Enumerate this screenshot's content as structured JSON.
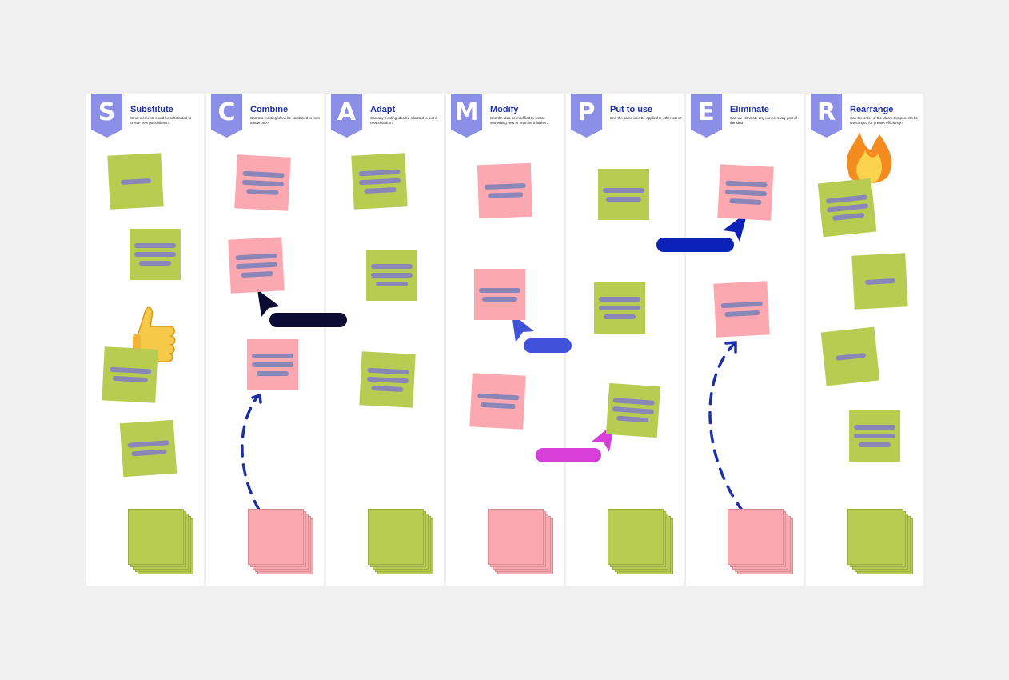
{
  "board": {
    "columns": [
      {
        "letter": "S",
        "title": "Substitute",
        "question": "What elements could be substituted to create new possibilities?"
      },
      {
        "letter": "C",
        "title": "Combine",
        "question": "Can two existing ideas be combined to form a new one?"
      },
      {
        "letter": "A",
        "title": "Adapt",
        "question": "Can any existing idea be adapted to suit a new situation?"
      },
      {
        "letter": "M",
        "title": "Modify",
        "question": "Can the idea be modified to create something new or improve it further?"
      },
      {
        "letter": "P",
        "title": "Put to use",
        "question": "Can the same idea be applied to other uses?"
      },
      {
        "letter": "E",
        "title": "Eliminate",
        "question": "Can we eliminate any unnecessary part of the idea?"
      },
      {
        "letter": "R",
        "title": "Rearrange",
        "question": "Can the order of the idea's components be rearranged for greater efficiency?"
      }
    ],
    "icons": [
      "thumbs-up-icon",
      "fire-icon",
      "cursor-icon"
    ],
    "colors": {
      "badge": "#8b8fe8",
      "title": "#1d2fa6",
      "green_note": "#b8cc52",
      "pink_note": "#fba8b0",
      "note_line": "#8a86b8"
    }
  }
}
